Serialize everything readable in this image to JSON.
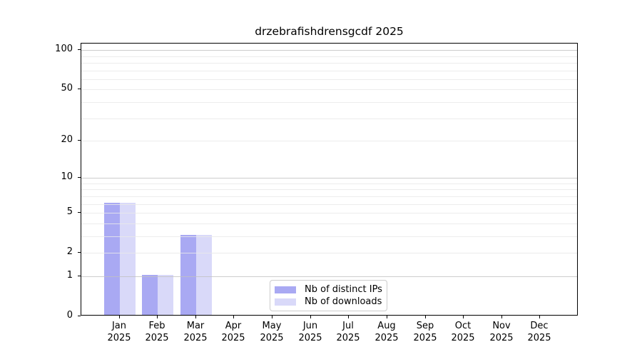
{
  "title": "drzebrafishdrensgcdf 2025",
  "legend": {
    "items": [
      {
        "label": "Nb of distinct IPs",
        "color": "#a9a9f3"
      },
      {
        "label": "Nb of downloads",
        "color": "#d9d9f9"
      }
    ]
  },
  "chart_data": {
    "type": "bar",
    "title": "drzebrafishdrensgcdf 2025",
    "categories": [
      "Jan",
      "Feb",
      "Mar",
      "Apr",
      "May",
      "Jun",
      "Jul",
      "Aug",
      "Sep",
      "Oct",
      "Nov",
      "Dec"
    ],
    "year": "2025",
    "series": [
      {
        "name": "Nb of distinct IPs",
        "color": "#a9a9f3",
        "values": [
          6,
          1,
          3,
          0,
          0,
          0,
          0,
          0,
          0,
          0,
          0,
          0
        ]
      },
      {
        "name": "Nb of downloads",
        "color": "#d9d9f9",
        "values": [
          6,
          1,
          3,
          0,
          0,
          0,
          0,
          0,
          0,
          0,
          0,
          0
        ]
      }
    ],
    "xlabel": "",
    "ylabel": "",
    "y_scale": "log1p",
    "ylim": [
      0,
      112
    ],
    "y_tick_values": [
      0,
      1,
      2,
      5,
      10,
      20,
      50,
      100
    ],
    "y_tick_labels": [
      "0",
      "1",
      "2",
      "5",
      "10",
      "20",
      "50",
      "100"
    ],
    "grid_major_values": [
      1,
      10,
      100
    ],
    "grid_minor_values": [
      2,
      3,
      4,
      5,
      6,
      7,
      8,
      9,
      20,
      30,
      40,
      50,
      60,
      70,
      80,
      90
    ],
    "grid": "horizontal",
    "legend_position": "lower center inside"
  }
}
